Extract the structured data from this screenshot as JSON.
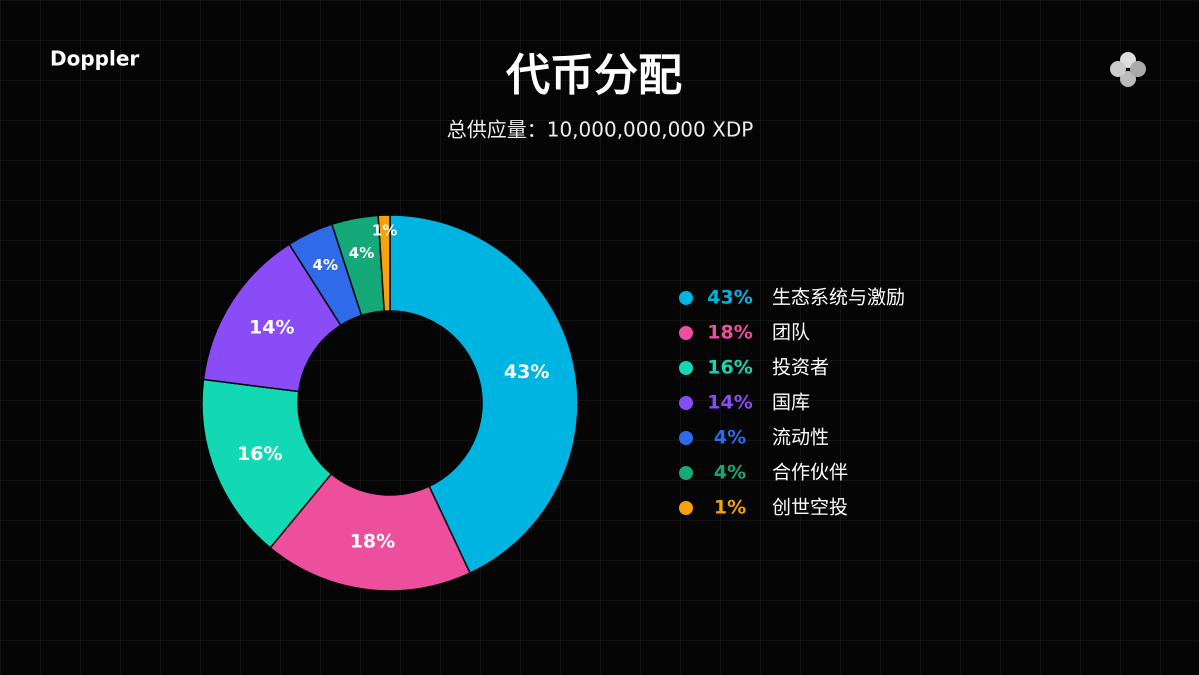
{
  "brand": "Doppler",
  "chart_data": {
    "type": "pie",
    "donut": true,
    "title": "代币分配",
    "subtitle": "总供应量：10,000,000,000 XDP",
    "categories": [
      "生态系统与激励",
      "团队",
      "投资者",
      "国库",
      "流动性",
      "合作伙伴",
      "创世空投"
    ],
    "values": [
      43,
      18,
      16,
      14,
      4,
      4,
      1
    ],
    "value_labels": [
      "43%",
      "18%",
      "16%",
      "14%",
      "4%",
      "4%",
      "1%"
    ],
    "colors": [
      "#00b4e2",
      "#ee4f9d",
      "#12d8b4",
      "#8a4cf6",
      "#2f6ae8",
      "#15a878",
      "#f5a20c"
    ],
    "legend": "right"
  }
}
